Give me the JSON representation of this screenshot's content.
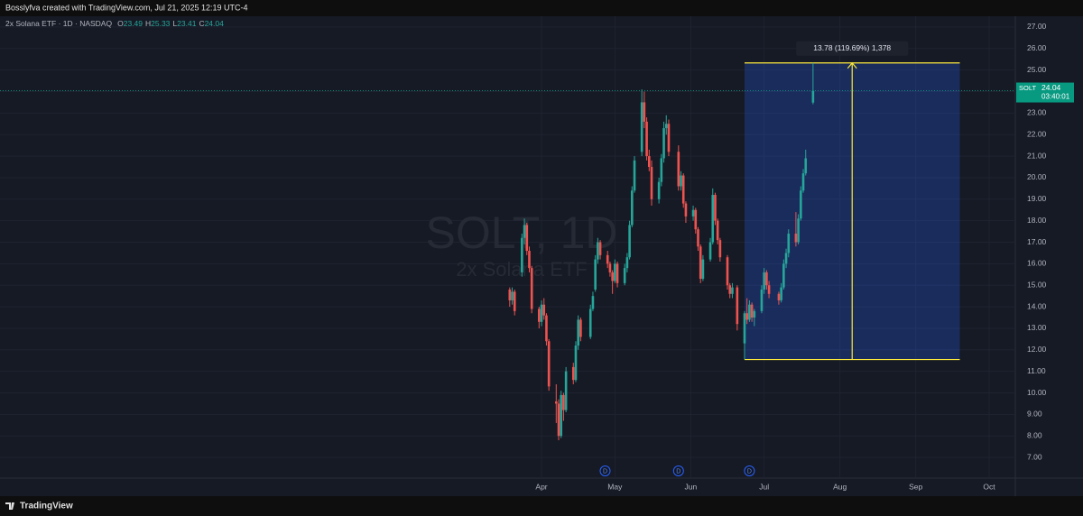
{
  "header": {
    "credit": "Bosslyfva created with TradingView.com, Jul 21, 2025 12:19 UTC-4",
    "footer": "TradingView"
  },
  "chart_data": {
    "type": "candlestick",
    "legend": {
      "symbol": "2x Solana ETF · 1D · NASDAQ",
      "ohlc": [
        {
          "key": "O",
          "value": 23.49
        },
        {
          "key": "H",
          "value": 25.33
        },
        {
          "key": "L",
          "value": 23.41
        },
        {
          "key": "C",
          "value": 24.04
        }
      ]
    },
    "watermark": [
      "SOLT, 1D",
      "2x Solana ETF"
    ],
    "up_color": "#26a69a",
    "down_color": "#ef5350",
    "xlim": [
      -221.4,
      193.7
    ],
    "xticks": [
      {
        "value": 0,
        "label": "Apr"
      },
      {
        "value": 30,
        "label": "May"
      },
      {
        "value": 61,
        "label": "Jun"
      },
      {
        "value": 91,
        "label": "Jul"
      },
      {
        "value": 122,
        "label": "Aug"
      },
      {
        "value": 153,
        "label": "Sep"
      },
      {
        "value": 183,
        "label": "Oct"
      }
    ],
    "ylim": [
      6.04,
      27.5
    ],
    "yticks": [
      {
        "value": 7,
        "label": "7.00"
      },
      {
        "value": 8,
        "label": "8.00"
      },
      {
        "value": 9,
        "label": "9.00"
      },
      {
        "value": 10,
        "label": "10.00"
      },
      {
        "value": 11,
        "label": "11.00"
      },
      {
        "value": 12,
        "label": "12.00"
      },
      {
        "value": 13,
        "label": "13.00"
      },
      {
        "value": 14,
        "label": "14.00"
      },
      {
        "value": 15,
        "label": "15.00"
      },
      {
        "value": 16,
        "label": "16.00"
      },
      {
        "value": 17,
        "label": "17.00"
      },
      {
        "value": 18,
        "label": "18.00"
      },
      {
        "value": 19,
        "label": "19.00"
      },
      {
        "value": 20,
        "label": "20.00"
      },
      {
        "value": 21,
        "label": "21.00"
      },
      {
        "value": 22,
        "label": "22.00"
      },
      {
        "value": 23,
        "label": "23.00"
      },
      {
        "value": 24,
        "label": "24.00"
      },
      {
        "value": 25,
        "label": "25.00"
      },
      {
        "value": 26,
        "label": "26.00"
      },
      {
        "value": 27,
        "label": "27.00"
      }
    ],
    "grid": true,
    "x": [
      -13,
      -12,
      -11,
      -8,
      -7,
      -6,
      -5,
      -4,
      -1,
      0,
      1,
      2,
      3,
      6,
      7,
      8,
      9,
      10,
      13,
      14,
      15,
      16,
      20,
      21,
      22,
      23,
      24,
      27,
      28,
      29,
      30,
      31,
      34,
      35,
      36,
      37,
      38,
      41,
      42,
      43,
      44,
      45,
      48,
      49,
      50,
      51,
      52,
      56,
      57,
      58,
      59,
      62,
      63,
      64,
      65,
      66,
      69,
      70,
      71,
      72,
      73,
      76,
      77,
      78,
      80,
      83,
      84,
      85,
      86,
      87,
      90,
      91,
      92,
      93,
      97,
      98,
      99,
      100,
      101,
      104,
      105,
      106,
      107,
      108,
      111
    ],
    "candles": [
      [
        14.8,
        14.9,
        14.0,
        14.3
      ],
      [
        14.3,
        14.9,
        14.1,
        14.7
      ],
      [
        14.7,
        14.8,
        13.6,
        13.8
      ],
      [
        15.6,
        17.4,
        15.4,
        17.2
      ],
      [
        17.2,
        18.1,
        16.9,
        17.8
      ],
      [
        17.8,
        17.9,
        16.4,
        16.6
      ],
      [
        16.6,
        16.8,
        15.6,
        15.8
      ],
      [
        15.8,
        15.9,
        13.7,
        13.9
      ],
      [
        13.9,
        14.0,
        13.0,
        13.3
      ],
      [
        13.3,
        14.3,
        13.1,
        14.1
      ],
      [
        14.1,
        14.4,
        13.4,
        13.6
      ],
      [
        13.6,
        13.7,
        12.2,
        12.4
      ],
      [
        12.4,
        12.5,
        10.1,
        10.3
      ],
      [
        9.6,
        10.4,
        8.6,
        9.5
      ],
      [
        9.5,
        9.7,
        7.8,
        8.0
      ],
      [
        8.0,
        10.1,
        7.9,
        9.9
      ],
      [
        9.9,
        10.0,
        8.7,
        9.2
      ],
      [
        9.2,
        11.2,
        9.1,
        11.0
      ],
      [
        11.2,
        11.4,
        10.4,
        10.6
      ],
      [
        10.6,
        12.4,
        10.5,
        12.2
      ],
      [
        12.2,
        13.6,
        12.0,
        13.4
      ],
      [
        13.4,
        13.5,
        12.4,
        12.6
      ],
      [
        12.6,
        14.1,
        12.5,
        13.9
      ],
      [
        13.9,
        14.7,
        13.8,
        14.5
      ],
      [
        14.8,
        16.4,
        14.7,
        16.2
      ],
      [
        16.2,
        17.2,
        16.0,
        17.0
      ],
      [
        17.0,
        17.1,
        16.2,
        16.4
      ],
      [
        16.4,
        16.6,
        15.8,
        16.0
      ],
      [
        16.0,
        16.1,
        15.4,
        15.6
      ],
      [
        15.6,
        15.7,
        14.6,
        15.2
      ],
      [
        15.2,
        16.2,
        15.1,
        16.0
      ],
      [
        16.0,
        16.1,
        14.9,
        15.1
      ],
      [
        15.1,
        16.0,
        15.0,
        15.8
      ],
      [
        15.8,
        16.5,
        15.6,
        16.3
      ],
      [
        16.3,
        18.0,
        16.2,
        17.8
      ],
      [
        17.8,
        19.6,
        17.7,
        19.4
      ],
      [
        19.4,
        21.0,
        19.3,
        20.8
      ],
      [
        21.2,
        24.1,
        21.0,
        23.5
      ],
      [
        23.5,
        24.0,
        22.3,
        22.6
      ],
      [
        22.6,
        22.8,
        20.8,
        21.0
      ],
      [
        21.0,
        21.3,
        20.3,
        20.5
      ],
      [
        20.5,
        20.8,
        18.7,
        19.0
      ],
      [
        19.0,
        20.0,
        18.8,
        19.8
      ],
      [
        19.8,
        21.1,
        19.6,
        20.9
      ],
      [
        20.9,
        22.6,
        20.7,
        22.3
      ],
      [
        22.3,
        22.9,
        22.0,
        22.5
      ],
      [
        22.5,
        22.7,
        21.0,
        21.2
      ],
      [
        21.2,
        21.5,
        19.4,
        19.6
      ],
      [
        19.6,
        20.3,
        19.4,
        20.1
      ],
      [
        20.1,
        20.2,
        18.6,
        18.8
      ],
      [
        18.8,
        18.9,
        17.9,
        18.2
      ],
      [
        18.2,
        18.7,
        18.0,
        18.5
      ],
      [
        18.5,
        18.6,
        17.4,
        17.6
      ],
      [
        17.6,
        17.7,
        16.6,
        16.8
      ],
      [
        16.8,
        16.9,
        15.1,
        15.3
      ],
      [
        15.3,
        16.4,
        15.2,
        16.2
      ],
      [
        16.2,
        17.2,
        16.1,
        17.0
      ],
      [
        17.0,
        19.5,
        16.9,
        19.2
      ],
      [
        19.2,
        19.3,
        17.8,
        18.0
      ],
      [
        18.0,
        18.1,
        16.9,
        17.1
      ],
      [
        17.1,
        17.2,
        16.1,
        16.3
      ],
      [
        16.3,
        16.4,
        14.8,
        15.0
      ],
      [
        15.0,
        15.1,
        14.4,
        14.6
      ],
      [
        14.6,
        15.1,
        14.4,
        14.9
      ],
      [
        14.9,
        15.0,
        12.9,
        13.2
      ],
      [
        12.3,
        13.8,
        11.55,
        13.7
      ],
      [
        13.7,
        14.4,
        13.2,
        13.4
      ],
      [
        13.4,
        14.3,
        13.3,
        14.1
      ],
      [
        14.1,
        14.2,
        13.3,
        13.5
      ],
      [
        13.5,
        13.9,
        13.1,
        13.8
      ],
      [
        13.8,
        15.0,
        13.7,
        14.8
      ],
      [
        14.8,
        15.8,
        14.6,
        15.6
      ],
      [
        15.6,
        15.7,
        14.8,
        15.0
      ],
      [
        15.0,
        15.2,
        14.4,
        14.6
      ],
      [
        14.6,
        14.7,
        14.1,
        14.3
      ],
      [
        14.3,
        15.1,
        14.2,
        14.9
      ],
      [
        14.9,
        16.2,
        14.8,
        16.0
      ],
      [
        16.0,
        16.7,
        15.8,
        16.5
      ],
      [
        16.5,
        17.6,
        16.3,
        17.4
      ],
      [
        17.4,
        18.4,
        16.8,
        17.0
      ],
      [
        17.0,
        18.3,
        16.9,
        18.1
      ],
      [
        18.1,
        19.6,
        18.0,
        19.4
      ],
      [
        19.4,
        20.4,
        19.3,
        20.2
      ],
      [
        20.2,
        21.3,
        20.1,
        20.9
      ],
      [
        23.49,
        25.33,
        23.41,
        24.04
      ]
    ],
    "last_price": {
      "symbol": "SOLT",
      "value": 24.04,
      "countdown": "03:40:01",
      "color": "#089981"
    },
    "measure": {
      "from": 11.55,
      "to": 25.33,
      "x": [
        83,
        171
      ],
      "label": "13.78 (119.69%) 1,378",
      "color": "#ffeb3b",
      "fill": "rgba(41,98,255,0.25)"
    },
    "dividends": {
      "label": "D",
      "x": [
        26,
        56,
        85
      ]
    }
  }
}
